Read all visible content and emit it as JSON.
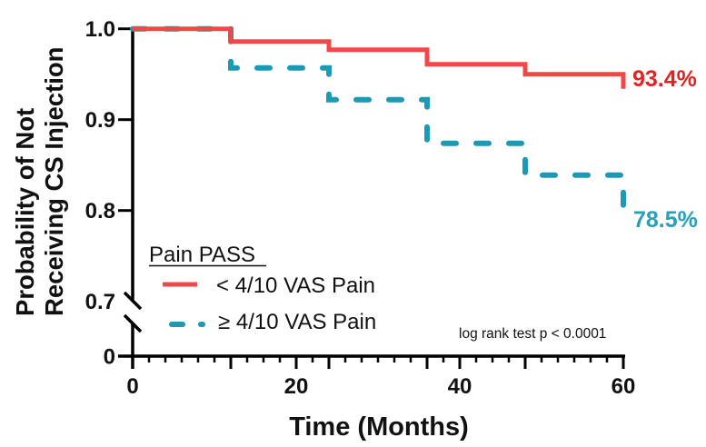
{
  "chart_data": {
    "type": "line",
    "subtype": "kaplan-meier-step",
    "title": "",
    "xlabel": "Time (Months)",
    "ylabel": "Probability of Not Receiving CS Injection",
    "ylabel_lines": [
      "Probability of Not",
      "Receiving CS Injection"
    ],
    "xlim": [
      0,
      60
    ],
    "ylim": [
      0,
      1.0
    ],
    "y_axis_break": {
      "lower_value": 0,
      "upper_start": 0.7
    },
    "x_ticks": [
      0,
      20,
      40,
      60
    ],
    "x_tick_labels": [
      "0",
      "20",
      "40",
      "60"
    ],
    "x_minor_tick_interval": 2,
    "x_medium_ticks": [
      12,
      24,
      36,
      48
    ],
    "y_ticks": [
      1.0,
      0.9,
      0.8,
      0.7,
      0
    ],
    "y_tick_labels": [
      "1.0",
      "0.9",
      "0.8",
      "0.7",
      "0"
    ],
    "grid": false,
    "legend": {
      "title": "Pain PASS",
      "position": "bottom-left",
      "entries": [
        "< 4/10 VAS Pain",
        "≥ 4/10 VAS Pain"
      ]
    },
    "series": [
      {
        "name": "< 4/10 VAS Pain",
        "color": "#f04848",
        "style": "solid",
        "x": [
          0,
          12,
          24,
          36,
          48,
          60
        ],
        "y": [
          1.0,
          0.986,
          0.977,
          0.961,
          0.95,
          0.934
        ],
        "end_label": "93.4%",
        "end_label_color": "#e52222"
      },
      {
        "name": "≥ 4/10 VAS Pain",
        "color": "#1a9ab5",
        "style": "dashed",
        "x": [
          0,
          12,
          24,
          36,
          48,
          60
        ],
        "y": [
          1.0,
          0.957,
          0.922,
          0.874,
          0.839,
          0.785
        ],
        "end_label": "78.5%",
        "end_label_color": "#27a0b8"
      }
    ],
    "annotations": [
      {
        "text": "log rank test p < 0.0001",
        "position": "bottom-right"
      }
    ]
  }
}
